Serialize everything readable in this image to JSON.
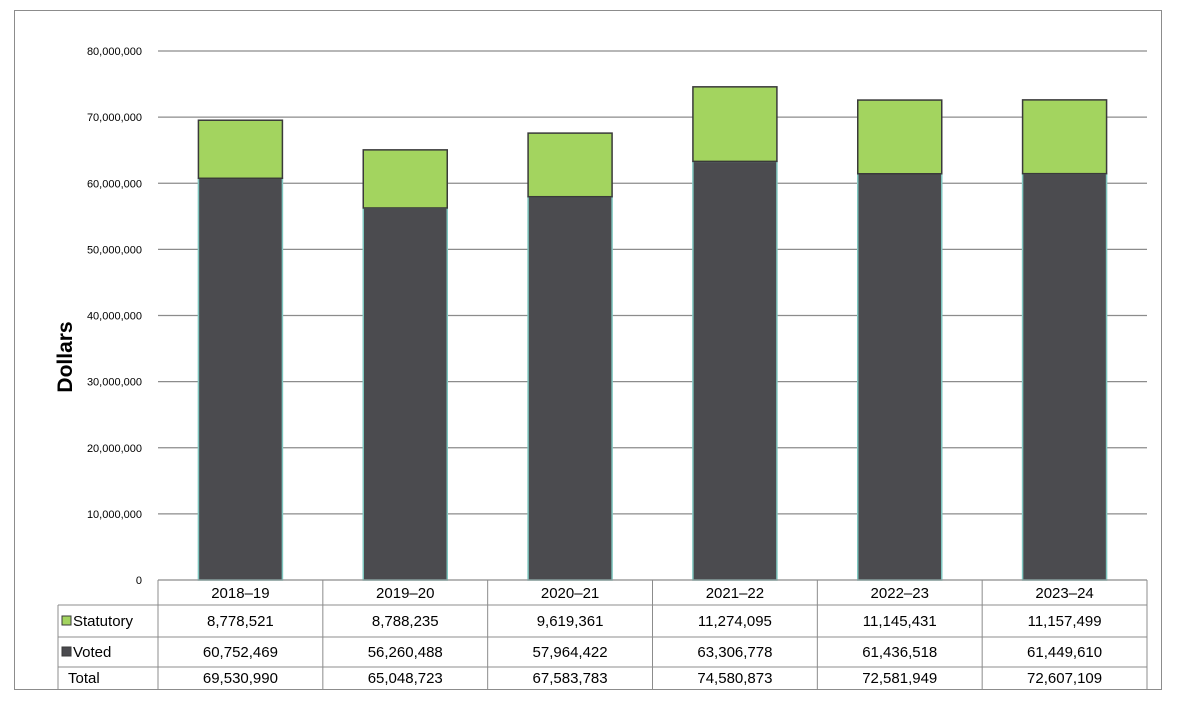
{
  "chart_data": {
    "type": "bar",
    "stacked": true,
    "categories": [
      "2018–19",
      "2019–20",
      "2020–21",
      "2021–22",
      "2022–23",
      "2023–24"
    ],
    "series": [
      {
        "name": "Voted",
        "values": [
          60752469,
          56260488,
          57964422,
          63306778,
          61436518,
          61449610
        ],
        "labels": [
          "60,752,469",
          "56,260,488",
          "57,964,422",
          "63,306,778",
          "61,436,518",
          "61,449,610"
        ],
        "color": "#4b4b4f",
        "edge_color": "#7fc7c0"
      },
      {
        "name": "Statutory",
        "values": [
          8778521,
          8788235,
          9619361,
          11274095,
          11145431,
          11157499
        ],
        "labels": [
          "8,778,521",
          "8,788,235",
          "9,619,361",
          "11,274,095",
          "11,145,431",
          "11,157,499"
        ],
        "color": "#a3d45f",
        "edge_color": "#3a3a3a"
      }
    ],
    "totals": {
      "name": "Total",
      "values": [
        69530990,
        65048723,
        67583783,
        74580873,
        72581949,
        72607109
      ],
      "labels": [
        "69,530,990",
        "65,048,723",
        "67,583,783",
        "74,580,873",
        "72,581,949",
        "72,607,109"
      ]
    },
    "ylabel": "Dollars",
    "ylim": [
      0,
      80000000
    ],
    "yticks": [
      0,
      10000000,
      20000000,
      30000000,
      40000000,
      50000000,
      60000000,
      70000000,
      80000000
    ],
    "ytick_labels": [
      "0",
      "10,000,000",
      "20,000,000",
      "30,000,000",
      "40,000,000",
      "50,000,000",
      "60,000,000",
      "70,000,000",
      "80,000,000"
    ],
    "grid": true,
    "legend": "data-table",
    "gridline_color": "#8c8c8c",
    "table_row_order": [
      "Statutory",
      "Voted",
      "Total"
    ]
  }
}
